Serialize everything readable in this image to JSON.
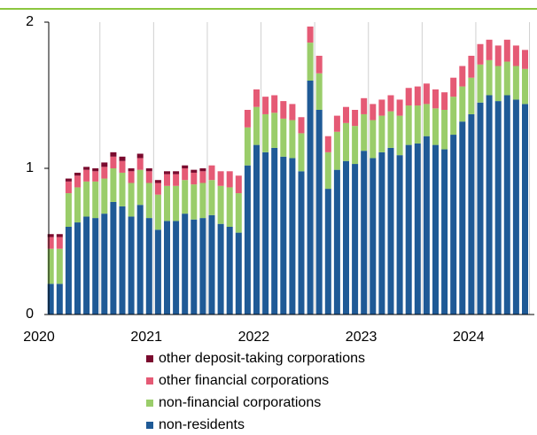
{
  "chart_data": {
    "type": "stacked_bar",
    "categories": [
      "2020",
      null,
      null,
      null,
      null,
      null,
      null,
      null,
      null,
      null,
      null,
      null,
      "2021",
      null,
      null,
      null,
      null,
      null,
      null,
      null,
      null,
      null,
      null,
      null,
      "2022",
      null,
      null,
      null,
      null,
      null,
      null,
      null,
      null,
      null,
      null,
      null,
      "2023",
      null,
      null,
      null,
      null,
      null,
      null,
      null,
      null,
      null,
      null,
      null,
      "2024",
      null,
      null,
      null,
      null,
      null,
      null,
      null
    ],
    "series": [
      {
        "name": "non-residents",
        "color": "#1f5a96",
        "values": [
          null,
          null,
          0.21,
          0.21,
          0.6,
          0.63,
          0.67,
          0.66,
          0.69,
          0.77,
          0.74,
          0.67,
          0.75,
          0.66,
          0.58,
          0.64,
          0.64,
          0.69,
          0.65,
          0.66,
          0.68,
          0.62,
          0.6,
          0.56,
          1.02,
          1.16,
          1.11,
          1.14,
          1.08,
          1.07,
          0.98,
          1.6,
          1.4,
          0.86,
          0.99,
          1.05,
          1.03,
          1.12,
          1.07,
          1.11,
          1.14,
          1.09,
          1.16,
          1.17,
          1.22,
          1.16,
          1.13,
          1.23,
          1.32,
          1.37,
          1.45,
          1.5,
          1.46,
          1.5,
          1.47,
          1.44
        ]
      },
      {
        "name": "non-financial corporations",
        "color": "#9acd6a",
        "values": [
          null,
          null,
          0.24,
          0.24,
          0.23,
          0.24,
          0.24,
          0.25,
          0.24,
          0.23,
          0.23,
          0.23,
          0.24,
          0.24,
          0.24,
          0.24,
          0.24,
          0.23,
          0.24,
          0.24,
          0.24,
          0.26,
          0.27,
          0.27,
          0.26,
          0.26,
          0.26,
          0.24,
          0.26,
          0.26,
          0.26,
          0.26,
          0.25,
          0.25,
          0.26,
          0.26,
          0.26,
          0.25,
          0.26,
          0.25,
          0.25,
          0.27,
          0.27,
          0.26,
          0.22,
          0.25,
          0.27,
          0.26,
          0.24,
          0.25,
          0.26,
          0.24,
          0.24,
          0.23,
          0.23,
          0.24
        ]
      },
      {
        "name": "other financial corporations",
        "color": "#e55a75",
        "values": [
          null,
          null,
          0.08,
          0.08,
          0.08,
          0.08,
          0.08,
          0.07,
          0.08,
          0.08,
          0.08,
          0.08,
          0.08,
          0.08,
          0.08,
          0.08,
          0.08,
          0.08,
          0.08,
          0.08,
          0.1,
          0.1,
          0.11,
          0.12,
          0.12,
          0.12,
          0.12,
          0.12,
          0.12,
          0.11,
          0.11,
          0.11,
          0.12,
          0.11,
          0.11,
          0.11,
          0.11,
          0.11,
          0.11,
          0.11,
          0.11,
          0.11,
          0.12,
          0.13,
          0.14,
          0.13,
          0.12,
          0.13,
          0.14,
          0.15,
          0.14,
          0.14,
          0.14,
          0.15,
          0.14,
          0.13
        ]
      },
      {
        "name": "other deposit-taking corporations",
        "color": "#7a0a2e",
        "values": [
          null,
          null,
          0.02,
          0.02,
          0.02,
          0.02,
          0.02,
          0.02,
          0.03,
          0.03,
          0.03,
          0.02,
          0.03,
          0.02,
          0.02,
          0.02,
          0.02,
          0.02,
          0.02,
          0.02,
          0,
          0,
          0,
          0,
          0,
          0,
          0,
          0,
          0,
          0,
          0,
          0,
          0,
          0,
          0,
          0,
          0,
          0,
          0,
          0,
          0,
          0,
          0,
          0,
          0,
          0,
          0,
          0,
          0,
          0,
          0,
          0,
          0,
          0,
          0,
          0
        ]
      }
    ],
    "ylim": [
      0,
      2
    ],
    "yticks": [
      0,
      1,
      2
    ],
    "legend": "bottom"
  }
}
